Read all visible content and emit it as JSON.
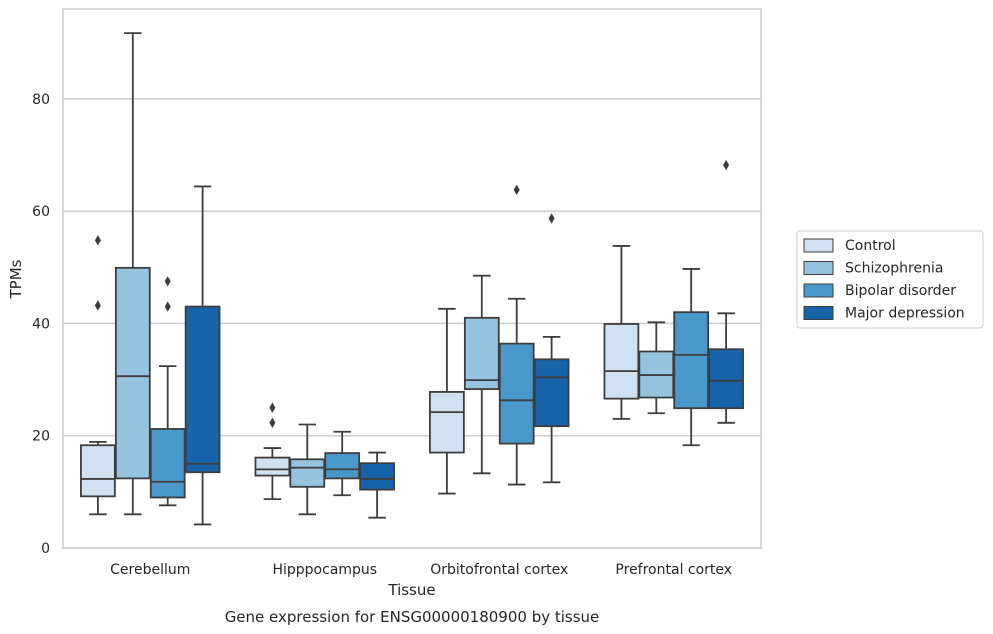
{
  "caption": "Gene expression for ENSG00000180900 by tissue",
  "chart_data": {
    "type": "box",
    "title": "",
    "xlabel": "Tissue",
    "ylabel": "TPMs",
    "ylim": [
      0,
      96
    ],
    "yticks": [
      0,
      20,
      40,
      60,
      80
    ],
    "grid": "horizontal",
    "legend_position": "right",
    "categories": [
      "Cerebellum",
      "Hipppocampus",
      "Orbitofrontal cortex",
      "Prefrontal cortex"
    ],
    "series": [
      {
        "name": "Control",
        "color": "#d0e1f2",
        "boxes": [
          {
            "whisker_low": 6.0,
            "q1": 9.2,
            "median": 12.3,
            "q3": 18.3,
            "whisker_high": 18.9,
            "outliers": [
              43.2,
              54.8
            ]
          },
          {
            "whisker_low": 8.7,
            "q1": 12.9,
            "median": 14.0,
            "q3": 16.1,
            "whisker_high": 17.8,
            "outliers": [
              22.3,
              25.0
            ]
          },
          {
            "whisker_low": 9.7,
            "q1": 17.0,
            "median": 24.2,
            "q3": 27.8,
            "whisker_high": 42.6,
            "outliers": []
          },
          {
            "whisker_low": 23.0,
            "q1": 26.6,
            "median": 31.5,
            "q3": 39.9,
            "whisker_high": 53.8,
            "outliers": []
          }
        ]
      },
      {
        "name": "Schizophrenia",
        "color": "#94c4df",
        "boxes": [
          {
            "whisker_low": 6.0,
            "q1": 12.4,
            "median": 30.6,
            "q3": 49.9,
            "whisker_high": 91.7,
            "outliers": []
          },
          {
            "whisker_low": 6.0,
            "q1": 10.9,
            "median": 14.3,
            "q3": 15.8,
            "whisker_high": 22.0,
            "outliers": []
          },
          {
            "whisker_low": 13.3,
            "q1": 28.3,
            "median": 29.9,
            "q3": 41.0,
            "whisker_high": 48.5,
            "outliers": []
          },
          {
            "whisker_low": 24.0,
            "q1": 26.8,
            "median": 30.8,
            "q3": 35.0,
            "whisker_high": 40.2,
            "outliers": []
          }
        ]
      },
      {
        "name": "Bipolar disorder",
        "color": "#4a98c9",
        "boxes": [
          {
            "whisker_low": 7.6,
            "q1": 9.0,
            "median": 11.8,
            "q3": 21.2,
            "whisker_high": 32.4,
            "outliers": [
              43.0,
              47.5
            ]
          },
          {
            "whisker_low": 9.4,
            "q1": 12.4,
            "median": 14.0,
            "q3": 16.9,
            "whisker_high": 20.7,
            "outliers": []
          },
          {
            "whisker_low": 11.3,
            "q1": 18.6,
            "median": 26.3,
            "q3": 36.4,
            "whisker_high": 44.4,
            "outliers": [
              63.8
            ]
          },
          {
            "whisker_low": 18.3,
            "q1": 24.9,
            "median": 34.4,
            "q3": 42.0,
            "whisker_high": 49.7,
            "outliers": []
          }
        ]
      },
      {
        "name": "Major depression",
        "color": "#1764ab",
        "boxes": [
          {
            "whisker_low": 4.2,
            "q1": 13.5,
            "median": 15.0,
            "q3": 43.0,
            "whisker_high": 64.4,
            "outliers": []
          },
          {
            "whisker_low": 5.4,
            "q1": 10.4,
            "median": 12.3,
            "q3": 15.1,
            "whisker_high": 17.0,
            "outliers": []
          },
          {
            "whisker_low": 11.7,
            "q1": 21.7,
            "median": 30.4,
            "q3": 33.6,
            "whisker_high": 37.6,
            "outliers": [
              58.7
            ]
          },
          {
            "whisker_low": 22.3,
            "q1": 24.9,
            "median": 29.8,
            "q3": 35.4,
            "whisker_high": 41.8,
            "outliers": [
              68.2
            ]
          }
        ]
      }
    ],
    "line_color": "#3d3d3d",
    "grid_color": "#cccccc",
    "spine_color": "#cccccc"
  }
}
